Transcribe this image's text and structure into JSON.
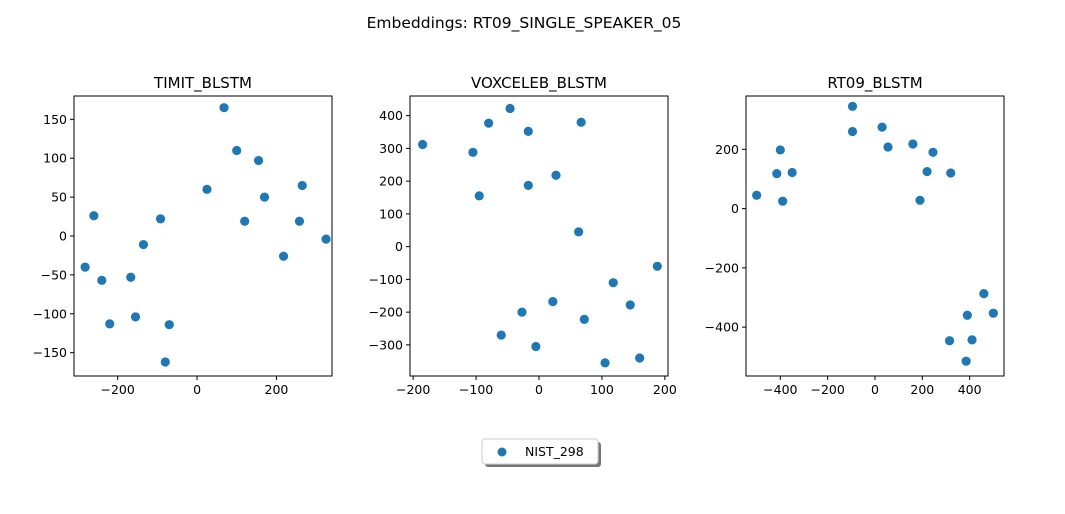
{
  "suptitle": "Embeddings: RT09_SINGLE_SPEAKER_05",
  "legend": {
    "label": "NIST_298",
    "placement": "bottom-center"
  },
  "colors": {
    "series": "#1f77b4",
    "axes": "#000000"
  },
  "chart_data": [
    {
      "type": "scatter",
      "title": "TIMIT_BLSTM",
      "xlabel": "",
      "ylabel": "",
      "xlim": [
        -310,
        340
      ],
      "ylim": [
        -180,
        180
      ],
      "xticks": [
        -200,
        0,
        200
      ],
      "yticks": [
        -150,
        -100,
        -50,
        0,
        50,
        100,
        150
      ],
      "series": [
        {
          "name": "NIST_298",
          "points": [
            [
              68,
              165
            ],
            [
              100,
              110
            ],
            [
              155,
              97
            ],
            [
              265,
              65
            ],
            [
              25,
              60
            ],
            [
              170,
              50
            ],
            [
              -260,
              26
            ],
            [
              -92,
              22
            ],
            [
              120,
              19
            ],
            [
              258,
              19
            ],
            [
              325,
              -4
            ],
            [
              -135,
              -11
            ],
            [
              218,
              -26
            ],
            [
              -282,
              -40
            ],
            [
              -167,
              -53
            ],
            [
              -240,
              -57
            ],
            [
              -155,
              -104
            ],
            [
              -220,
              -113
            ],
            [
              -70,
              -114
            ],
            [
              -80,
              -162
            ]
          ]
        }
      ]
    },
    {
      "type": "scatter",
      "title": "VOXCELEB_BLSTM",
      "xlabel": "",
      "ylabel": "",
      "xlim": [
        -205,
        205
      ],
      "ylim": [
        -395,
        460
      ],
      "xticks": [
        -200,
        -100,
        0,
        100,
        200
      ],
      "yticks": [
        -300,
        -200,
        -100,
        0,
        100,
        200,
        300,
        400
      ],
      "series": [
        {
          "name": "NIST_298",
          "points": [
            [
              -46,
              422
            ],
            [
              -80,
              377
            ],
            [
              67,
              380
            ],
            [
              -17,
              352
            ],
            [
              -185,
              312
            ],
            [
              -105,
              288
            ],
            [
              27,
              218
            ],
            [
              -17,
              187
            ],
            [
              -95,
              155
            ],
            [
              63,
              45
            ],
            [
              188,
              -60
            ],
            [
              118,
              -110
            ],
            [
              22,
              -168
            ],
            [
              145,
              -178
            ],
            [
              -27,
              -200
            ],
            [
              72,
              -222
            ],
            [
              -60,
              -270
            ],
            [
              -5,
              -305
            ],
            [
              160,
              -340
            ],
            [
              105,
              -355
            ]
          ]
        }
      ]
    },
    {
      "type": "scatter",
      "title": "RT09_BLSTM",
      "xlabel": "",
      "ylabel": "",
      "xlim": [
        -545,
        545
      ],
      "ylim": [
        -565,
        380
      ],
      "xticks": [
        -400,
        -200,
        0,
        200,
        400
      ],
      "yticks": [
        -400,
        -200,
        0,
        200
      ],
      "series": [
        {
          "name": "NIST_298",
          "points": [
            [
              -95,
              345
            ],
            [
              30,
              275
            ],
            [
              -95,
              260
            ],
            [
              245,
              190
            ],
            [
              160,
              218
            ],
            [
              55,
              208
            ],
            [
              -400,
              198
            ],
            [
              -350,
              122
            ],
            [
              -415,
              118
            ],
            [
              220,
              125
            ],
            [
              320,
              120
            ],
            [
              -500,
              45
            ],
            [
              -390,
              25
            ],
            [
              190,
              28
            ],
            [
              460,
              -287
            ],
            [
              500,
              -353
            ],
            [
              390,
              -360
            ],
            [
              410,
              -443
            ],
            [
              315,
              -446
            ],
            [
              385,
              -515
            ]
          ]
        }
      ]
    }
  ]
}
